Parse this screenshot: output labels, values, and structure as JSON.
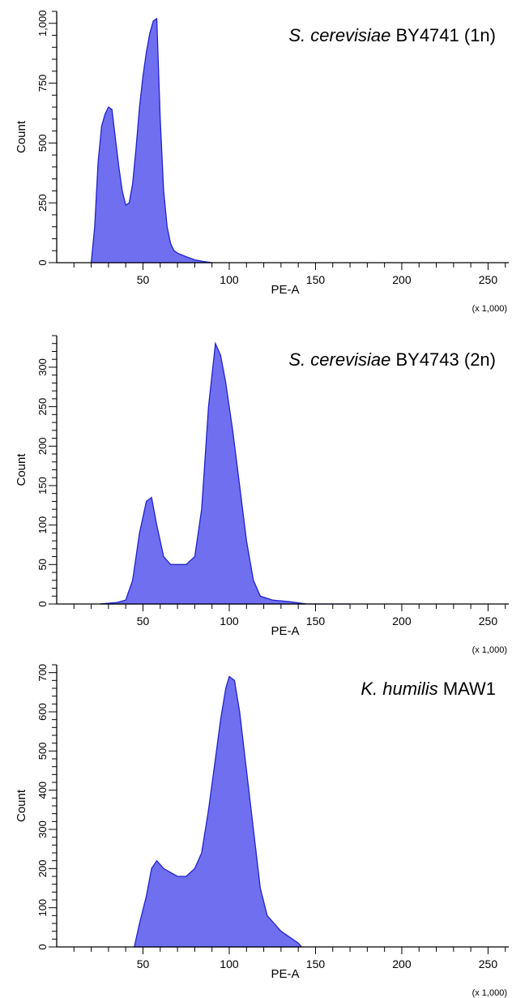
{
  "chart_data": [
    {
      "type": "area",
      "label_italic": "S. cerevisiae",
      "label_rest": " BY4741 (1n)",
      "xlabel": "PE-A",
      "ylabel": "Count",
      "x_multiplier": "(x 1,000)",
      "xlim": [
        0,
        262
      ],
      "ylim": [
        0,
        1050
      ],
      "xticks": [
        50,
        100,
        150,
        200,
        250
      ],
      "yticks": [
        0,
        250,
        500,
        750,
        1000
      ],
      "ytick_labels": [
        "0",
        "250",
        "500",
        "750",
        "1,000"
      ],
      "x": [
        20,
        22,
        24,
        26,
        28,
        30,
        32,
        34,
        36,
        38,
        40,
        42,
        44,
        46,
        48,
        50,
        52,
        54,
        56,
        58,
        60,
        62,
        64,
        66,
        68,
        70,
        75,
        80,
        85,
        90
      ],
      "values": [
        0,
        150,
        420,
        570,
        620,
        650,
        640,
        520,
        400,
        300,
        240,
        250,
        330,
        480,
        650,
        780,
        880,
        960,
        1010,
        1020,
        600,
        300,
        150,
        80,
        50,
        40,
        25,
        12,
        5,
        0
      ]
    },
    {
      "type": "area",
      "label_italic": "S. cerevisiae",
      "label_rest": " BY4743 (2n)",
      "xlabel": "PE-A",
      "ylabel": "Count",
      "x_multiplier": "(x 1,000)",
      "xlim": [
        0,
        262
      ],
      "ylim": [
        0,
        340
      ],
      "xticks": [
        50,
        100,
        150,
        200,
        250
      ],
      "yticks": [
        0,
        50,
        100,
        150,
        200,
        250,
        300
      ],
      "ytick_labels": [
        "0",
        "50",
        "100",
        "150",
        "200",
        "250",
        "300"
      ],
      "x": [
        25,
        35,
        40,
        44,
        48,
        52,
        55,
        58,
        62,
        66,
        70,
        75,
        80,
        84,
        88,
        92,
        95,
        98,
        102,
        106,
        110,
        114,
        118,
        125,
        135,
        145,
        170
      ],
      "values": [
        0,
        2,
        5,
        30,
        90,
        130,
        135,
        100,
        60,
        50,
        50,
        50,
        60,
        120,
        250,
        330,
        315,
        280,
        220,
        150,
        80,
        30,
        10,
        5,
        3,
        0,
        0
      ]
    },
    {
      "type": "area",
      "label_italic": "K. humilis",
      "label_rest": " MAW1",
      "xlabel": "PE-A",
      "ylabel": "Count",
      "x_multiplier": "(x 1,000)",
      "xlim": [
        0,
        262
      ],
      "ylim": [
        0,
        720
      ],
      "xticks": [
        50,
        100,
        150,
        200,
        250
      ],
      "yticks": [
        0,
        100,
        200,
        300,
        400,
        500,
        600,
        700
      ],
      "ytick_labels": [
        "0",
        "100",
        "200",
        "300",
        "400",
        "500",
        "600",
        "700"
      ],
      "x": [
        45,
        48,
        52,
        55,
        58,
        62,
        66,
        70,
        75,
        80,
        84,
        88,
        92,
        95,
        98,
        100,
        103,
        106,
        110,
        114,
        118,
        122,
        126,
        130,
        135,
        140,
        142
      ],
      "values": [
        0,
        60,
        130,
        200,
        220,
        200,
        190,
        180,
        180,
        200,
        240,
        350,
        480,
        580,
        660,
        690,
        680,
        600,
        450,
        300,
        150,
        80,
        60,
        40,
        25,
        10,
        0
      ]
    }
  ]
}
